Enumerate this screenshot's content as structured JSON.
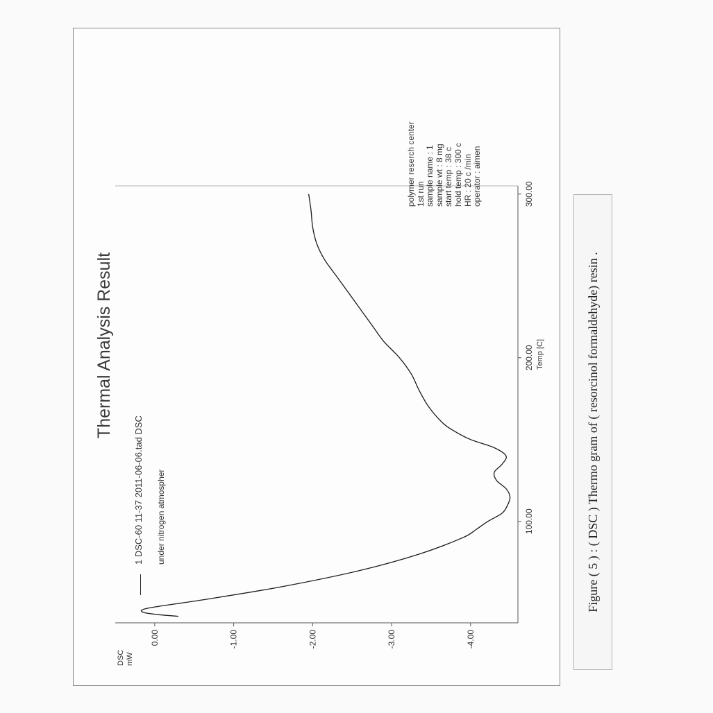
{
  "chart_data": {
    "type": "line",
    "title": "Thermal Analysis Result",
    "ylabel": "DSC\nmW",
    "xlabel": "Temp [C]",
    "xlim": [
      38,
      305
    ],
    "ylim": [
      -4.6,
      0.5
    ],
    "x_ticks": [
      100,
      200,
      300
    ],
    "x_tick_labels": [
      "100.00",
      "200.00",
      "300.00"
    ],
    "y_ticks": [
      0,
      -1,
      -2,
      -3,
      -4
    ],
    "y_tick_labels": [
      "0.00",
      "-1.00",
      "-2.00",
      "-3.00",
      "-4.00"
    ],
    "grid": false,
    "legend": {
      "entry": "1 DSC-60 11-37 2011-06-06.tad  DSC",
      "note": "under nitrogen atmospher"
    },
    "series": [
      {
        "name": "1 DSC-60 11-37 2011-06-06.tad  DSC",
        "x": [
          42,
          43,
          44.5,
          47,
          52,
          60,
          70,
          80,
          90,
          95,
          100,
          105,
          110,
          115,
          120,
          125,
          130,
          135,
          140,
          145,
          150,
          155,
          160,
          170,
          180,
          190,
          200,
          210,
          220,
          230,
          240,
          250,
          260,
          270,
          280,
          290,
          300
        ],
        "y": [
          -0.3,
          -0.05,
          0.15,
          0.08,
          -0.6,
          -1.6,
          -2.6,
          -3.35,
          -3.9,
          -4.07,
          -4.22,
          -4.4,
          -4.47,
          -4.5,
          -4.45,
          -4.33,
          -4.3,
          -4.4,
          -4.45,
          -4.3,
          -4.0,
          -3.8,
          -3.65,
          -3.47,
          -3.35,
          -3.25,
          -3.1,
          -2.9,
          -2.75,
          -2.6,
          -2.45,
          -2.3,
          -2.15,
          -2.05,
          -2.0,
          -1.98,
          -1.95
        ]
      }
    ]
  },
  "info_block": [
    "polymer reserch center",
    "1st run",
    "sample name : 1",
    "sample wt : 8 mg",
    "start temp : 38 c",
    "hold temp : 300 c",
    "HR : 20 c /min",
    "operator : aimen"
  ],
  "caption": "Figure ( 5 ) : ( DSC ) Thermo gram of ( resorcinol formaldehyde) resin ."
}
